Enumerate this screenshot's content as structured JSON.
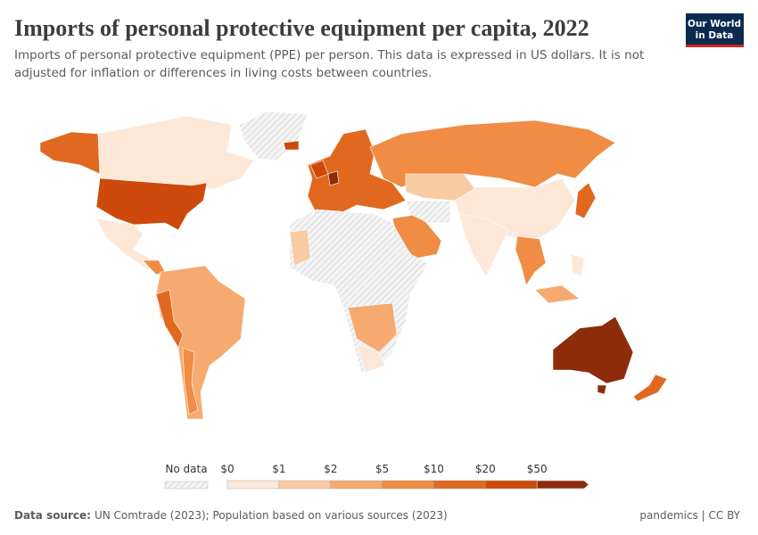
{
  "header": {
    "title": "Imports of personal protective equipment per capita, 2022",
    "subtitle": [
      "Imports of personal protective equipment (PPE) per person. This data is expressed in US dollars. It is not",
      "adjusted for inflation or differences in living costs between countries."
    ],
    "logo": [
      "Our World",
      "in Data"
    ]
  },
  "legend": {
    "no_data_label": "No data",
    "labels": [
      "$0",
      "$1",
      "$2",
      "$5",
      "$10",
      "$20",
      "$50"
    ],
    "colors": [
      "#fde8d8",
      "#f9cba2",
      "#f6aa6f",
      "#f08c44",
      "#e0681f",
      "#cd4a0c",
      "#8c2c0a"
    ]
  },
  "footer": {
    "source_label": "Data source:",
    "source": "UN Comtrade (2023); Population based on various sources (2023)",
    "license": "pandemics | CC BY"
  }
}
